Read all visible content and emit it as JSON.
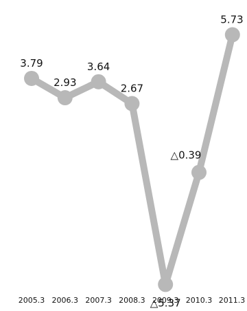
{
  "chart_data": {
    "type": "line",
    "title": "",
    "xlabel": "",
    "ylabel": "",
    "categories": [
      "2005.3",
      "2006.3",
      "2007.3",
      "2008.3",
      "2009.3",
      "2010.3",
      "2011.3"
    ],
    "series": [
      {
        "values": [
          3.79,
          2.93,
          3.64,
          2.67,
          -5.37,
          -0.39,
          5.73
        ],
        "labels": [
          "3.79",
          "2.93",
          "3.64",
          "2.67",
          "△5.37",
          "△0.39",
          "5.73"
        ],
        "color": "#b8b8b8"
      }
    ],
    "ylim": [
      -6,
      7
    ],
    "grid": false,
    "legend": "none"
  }
}
